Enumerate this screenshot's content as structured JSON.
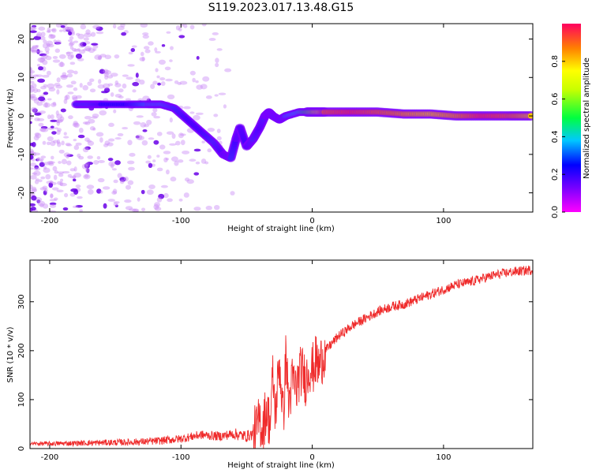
{
  "title": "S119.2023.017.13.48.G15",
  "chart_data": [
    {
      "type": "heatmap",
      "xlabel": "Height of straight line (km)",
      "ylabel": "Frequency (Hz)",
      "xlim": [
        -215,
        168
      ],
      "ylim": [
        -25,
        24
      ],
      "xticks": [
        -200,
        -100,
        0,
        100
      ],
      "yticks": [
        -20,
        -10,
        0,
        10,
        20
      ],
      "colorbar": {
        "label": "Normalized spectral amplitude",
        "range": [
          0,
          1
        ],
        "ticks": [
          "0.0",
          "0.2",
          "0.4",
          "0.6",
          "0.8"
        ],
        "colormap": [
          "#ff00ff",
          "#8000ff",
          "#0000ff",
          "#00c8ff",
          "#00ff40",
          "#ffff00",
          "#ff8000",
          "#ff0000"
        ]
      },
      "ridge": {
        "x": [
          -180,
          -170,
          -160,
          -140,
          -125,
          -115,
          -105,
          -95,
          -85,
          -75,
          -68,
          -62,
          -58,
          -55,
          -50,
          -45,
          -40,
          -36,
          -33,
          -30,
          -25,
          -20,
          -10,
          0,
          10,
          30,
          50,
          70,
          90,
          110,
          130,
          150,
          168
        ],
        "y": [
          3,
          3,
          3,
          3,
          3,
          3,
          2,
          -1,
          -4,
          -7,
          -10,
          -11,
          -6,
          -3,
          -8,
          -6,
          -3,
          0,
          1,
          0,
          -1,
          0,
          1,
          1,
          1,
          1,
          1,
          0.5,
          0.5,
          0,
          0,
          0,
          0
        ],
        "amplitude": [
          0.3,
          0.3,
          0.25,
          0.25,
          0.35,
          0.35,
          0.3,
          0.25,
          0.25,
          0.3,
          0.25,
          0.3,
          0.25,
          0.2,
          0.25,
          0.3,
          0.25,
          0.3,
          0.35,
          0.3,
          0.3,
          0.35,
          0.4,
          0.6,
          0.9,
          0.95,
          0.9,
          0.85,
          0.8,
          0.85,
          0.95,
          0.9,
          0.8
        ]
      },
      "scatter_noise_x_range": [
        -215,
        -60
      ]
    },
    {
      "type": "line",
      "xlabel": "Height of straight line (km)",
      "ylabel": "SNR (10 * v/v)",
      "xlim": [
        -215,
        168
      ],
      "ylim": [
        0,
        385
      ],
      "xticks": [
        -200,
        -100,
        0,
        100
      ],
      "yticks": [
        0,
        100,
        200,
        300
      ],
      "color": "#ef2b2b",
      "series": [
        {
          "x": [
            -215,
            -200,
            -180,
            -160,
            -140,
            -120,
            -100,
            -85,
            -70,
            -60,
            -50,
            -45,
            -42,
            -40,
            -38,
            -35,
            -32,
            -30,
            -28,
            -25,
            -22,
            -20,
            -18,
            -15,
            -12,
            -10,
            -8,
            -5,
            -2,
            0,
            3,
            5,
            8,
            10,
            15,
            20,
            25,
            30,
            35,
            40,
            50,
            60,
            70,
            80,
            90,
            100,
            110,
            120,
            130,
            140,
            150,
            160,
            168
          ],
          "y": [
            10,
            10,
            11,
            12,
            13,
            15,
            20,
            28,
            25,
            30,
            25,
            30,
            40,
            60,
            40,
            80,
            50,
            150,
            70,
            180,
            60,
            200,
            90,
            140,
            120,
            150,
            160,
            140,
            170,
            160,
            180,
            165,
            190,
            200,
            215,
            230,
            240,
            250,
            258,
            265,
            280,
            290,
            295,
            305,
            315,
            325,
            335,
            340,
            348,
            355,
            360,
            363,
            365
          ]
        }
      ]
    }
  ]
}
